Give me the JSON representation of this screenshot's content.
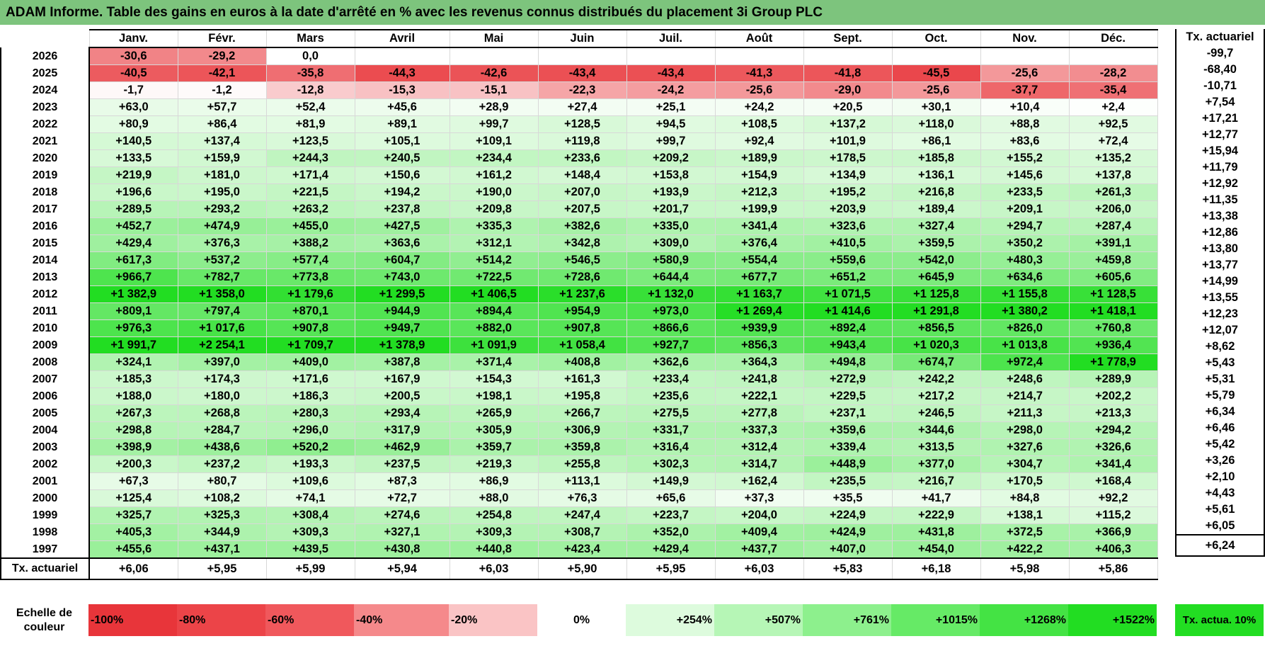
{
  "title": "ADAM Informe. Table des gains en euros à la date d'arrêté en % avec les revenus connus distribués du placement 3i Group PLC",
  "months": [
    "Janv.",
    "Févr.",
    "Mars",
    "Avril",
    "Mai",
    "Juin",
    "Juil.",
    "Août",
    "Sept.",
    "Oct.",
    "Nov.",
    "Déc."
  ],
  "side_header": "Tx. actuariel",
  "rows": [
    {
      "year": "2026",
      "values": [
        "-30,6",
        "-29,2",
        "0,0",
        "",
        "",
        "",
        "",
        "",
        "",
        "",
        "",
        ""
      ],
      "rate": "-99,7"
    },
    {
      "year": "2025",
      "values": [
        "-40,5",
        "-42,1",
        "-35,8",
        "-44,3",
        "-42,6",
        "-43,4",
        "-43,4",
        "-41,3",
        "-41,8",
        "-45,5",
        "-25,6",
        "-28,2"
      ],
      "rate": "-68,40"
    },
    {
      "year": "2024",
      "values": [
        "-1,7",
        "-1,2",
        "-12,8",
        "-15,3",
        "-15,1",
        "-22,3",
        "-24,2",
        "-25,6",
        "-29,0",
        "-25,6",
        "-37,7",
        "-35,4"
      ],
      "rate": "-10,71"
    },
    {
      "year": "2023",
      "values": [
        "+63,0",
        "+57,7",
        "+52,4",
        "+45,6",
        "+28,9",
        "+27,4",
        "+25,1",
        "+24,2",
        "+20,5",
        "+30,1",
        "+10,4",
        "+2,4"
      ],
      "rate": "+7,54"
    },
    {
      "year": "2022",
      "values": [
        "+80,9",
        "+86,4",
        "+81,9",
        "+89,1",
        "+99,7",
        "+128,5",
        "+94,5",
        "+108,5",
        "+137,2",
        "+118,0",
        "+88,8",
        "+92,5"
      ],
      "rate": "+17,21"
    },
    {
      "year": "2021",
      "values": [
        "+140,5",
        "+137,4",
        "+123,5",
        "+105,1",
        "+109,1",
        "+119,8",
        "+99,7",
        "+92,4",
        "+101,9",
        "+86,1",
        "+83,6",
        "+72,4"
      ],
      "rate": "+12,77"
    },
    {
      "year": "2020",
      "values": [
        "+133,5",
        "+159,9",
        "+244,3",
        "+240,5",
        "+234,4",
        "+233,6",
        "+209,2",
        "+189,9",
        "+178,5",
        "+185,8",
        "+155,2",
        "+135,2"
      ],
      "rate": "+15,94"
    },
    {
      "year": "2019",
      "values": [
        "+219,9",
        "+181,0",
        "+171,4",
        "+150,6",
        "+161,2",
        "+148,4",
        "+153,8",
        "+154,9",
        "+134,9",
        "+136,1",
        "+145,6",
        "+137,8"
      ],
      "rate": "+11,79"
    },
    {
      "year": "2018",
      "values": [
        "+196,6",
        "+195,0",
        "+221,5",
        "+194,2",
        "+190,0",
        "+207,0",
        "+193,9",
        "+212,3",
        "+195,2",
        "+216,8",
        "+233,5",
        "+261,3"
      ],
      "rate": "+12,92"
    },
    {
      "year": "2017",
      "values": [
        "+289,5",
        "+293,2",
        "+263,2",
        "+237,8",
        "+209,8",
        "+207,5",
        "+201,7",
        "+199,9",
        "+203,9",
        "+189,4",
        "+209,1",
        "+206,0"
      ],
      "rate": "+11,35"
    },
    {
      "year": "2016",
      "values": [
        "+452,7",
        "+474,9",
        "+455,0",
        "+427,5",
        "+335,3",
        "+382,6",
        "+335,0",
        "+341,4",
        "+323,6",
        "+327,4",
        "+294,7",
        "+287,4"
      ],
      "rate": "+13,38"
    },
    {
      "year": "2015",
      "values": [
        "+429,4",
        "+376,3",
        "+388,2",
        "+363,6",
        "+312,1",
        "+342,8",
        "+309,0",
        "+376,4",
        "+410,5",
        "+359,5",
        "+350,2",
        "+391,1"
      ],
      "rate": "+12,86"
    },
    {
      "year": "2014",
      "values": [
        "+617,3",
        "+537,2",
        "+577,4",
        "+604,7",
        "+514,2",
        "+546,5",
        "+580,9",
        "+554,4",
        "+559,6",
        "+542,0",
        "+480,3",
        "+459,8"
      ],
      "rate": "+13,80"
    },
    {
      "year": "2013",
      "values": [
        "+966,7",
        "+782,7",
        "+773,8",
        "+743,0",
        "+722,5",
        "+728,6",
        "+644,4",
        "+677,7",
        "+651,2",
        "+645,9",
        "+634,6",
        "+605,6"
      ],
      "rate": "+13,77"
    },
    {
      "year": "2012",
      "values": [
        "+1 382,9",
        "+1 358,0",
        "+1 179,6",
        "+1 299,5",
        "+1 406,5",
        "+1 237,6",
        "+1 132,0",
        "+1 163,7",
        "+1 071,5",
        "+1 125,8",
        "+1 155,8",
        "+1 128,5"
      ],
      "rate": "+14,99"
    },
    {
      "year": "2011",
      "values": [
        "+809,1",
        "+797,4",
        "+870,1",
        "+944,9",
        "+894,4",
        "+954,9",
        "+973,0",
        "+1 269,4",
        "+1 414,6",
        "+1 291,8",
        "+1 380,2",
        "+1 418,1"
      ],
      "rate": "+13,55"
    },
    {
      "year": "2010",
      "values": [
        "+976,3",
        "+1 017,6",
        "+907,8",
        "+949,7",
        "+882,0",
        "+907,8",
        "+866,6",
        "+939,9",
        "+892,4",
        "+856,5",
        "+826,0",
        "+760,8"
      ],
      "rate": "+12,23"
    },
    {
      "year": "2009",
      "values": [
        "+1 991,7",
        "+2 254,1",
        "+1 709,7",
        "+1 378,9",
        "+1 091,9",
        "+1 058,4",
        "+927,7",
        "+856,3",
        "+943,4",
        "+1 020,3",
        "+1 013,8",
        "+936,4"
      ],
      "rate": "+12,07"
    },
    {
      "year": "2008",
      "values": [
        "+324,1",
        "+397,0",
        "+409,0",
        "+387,8",
        "+371,4",
        "+408,8",
        "+362,6",
        "+364,3",
        "+494,8",
        "+674,7",
        "+972,4",
        "+1 778,9"
      ],
      "rate": "+8,62"
    },
    {
      "year": "2007",
      "values": [
        "+185,3",
        "+174,3",
        "+171,6",
        "+167,9",
        "+154,3",
        "+161,3",
        "+233,4",
        "+241,8",
        "+272,9",
        "+242,2",
        "+248,6",
        "+289,9"
      ],
      "rate": "+5,43"
    },
    {
      "year": "2006",
      "values": [
        "+188,0",
        "+180,0",
        "+186,3",
        "+200,5",
        "+198,1",
        "+195,8",
        "+235,6",
        "+222,1",
        "+229,5",
        "+217,2",
        "+214,7",
        "+202,2"
      ],
      "rate": "+5,31"
    },
    {
      "year": "2005",
      "values": [
        "+267,3",
        "+268,8",
        "+280,3",
        "+293,4",
        "+265,9",
        "+266,7",
        "+275,5",
        "+277,8",
        "+237,1",
        "+246,5",
        "+211,3",
        "+213,3"
      ],
      "rate": "+5,79"
    },
    {
      "year": "2004",
      "values": [
        "+298,8",
        "+284,7",
        "+296,0",
        "+317,9",
        "+305,9",
        "+306,9",
        "+331,7",
        "+337,3",
        "+359,6",
        "+344,6",
        "+298,0",
        "+294,2"
      ],
      "rate": "+6,34"
    },
    {
      "year": "2003",
      "values": [
        "+398,9",
        "+438,6",
        "+520,2",
        "+462,9",
        "+359,7",
        "+359,8",
        "+316,4",
        "+312,4",
        "+339,4",
        "+313,5",
        "+327,6",
        "+326,6"
      ],
      "rate": "+6,46"
    },
    {
      "year": "2002",
      "values": [
        "+200,3",
        "+237,2",
        "+193,3",
        "+237,5",
        "+219,3",
        "+255,8",
        "+302,3",
        "+314,7",
        "+448,9",
        "+377,0",
        "+304,7",
        "+341,4"
      ],
      "rate": "+5,42"
    },
    {
      "year": "2001",
      "values": [
        "+67,3",
        "+80,7",
        "+109,6",
        "+87,3",
        "+86,9",
        "+113,1",
        "+149,9",
        "+162,4",
        "+235,5",
        "+216,7",
        "+170,5",
        "+168,4"
      ],
      "rate": "+3,26"
    },
    {
      "year": "2000",
      "values": [
        "+125,4",
        "+108,2",
        "+74,1",
        "+72,7",
        "+88,0",
        "+76,3",
        "+65,6",
        "+37,3",
        "+35,5",
        "+41,7",
        "+84,8",
        "+92,2"
      ],
      "rate": "+2,10"
    },
    {
      "year": "1999",
      "values": [
        "+325,7",
        "+325,3",
        "+308,4",
        "+274,6",
        "+254,8",
        "+247,4",
        "+223,7",
        "+204,0",
        "+224,9",
        "+222,9",
        "+138,1",
        "+115,2"
      ],
      "rate": "+4,43"
    },
    {
      "year": "1998",
      "values": [
        "+405,3",
        "+344,9",
        "+309,3",
        "+327,1",
        "+309,3",
        "+308,7",
        "+352,0",
        "+409,4",
        "+424,9",
        "+431,8",
        "+372,5",
        "+366,9"
      ],
      "rate": "+5,61"
    },
    {
      "year": "1997",
      "values": [
        "+455,6",
        "+437,1",
        "+439,5",
        "+430,8",
        "+440,8",
        "+423,4",
        "+429,4",
        "+437,7",
        "+407,0",
        "+454,0",
        "+422,2",
        "+406,3"
      ],
      "rate": "+6,05"
    }
  ],
  "total_row": {
    "label": "Tx. actuariel",
    "values": [
      "+6,06",
      "+5,95",
      "+5,99",
      "+5,94",
      "+6,03",
      "+5,90",
      "+5,95",
      "+6,03",
      "+5,83",
      "+6,18",
      "+5,98",
      "+5,86"
    ],
    "rate": "+6,24"
  },
  "scale": {
    "label": "Echelle de couleur",
    "items": [
      {
        "text": "-100%",
        "color": "#e8353a"
      },
      {
        "text": "-80%",
        "color": "#ec4448"
      },
      {
        "text": "-60%",
        "color": "#f0585c"
      },
      {
        "text": "-40%",
        "color": "#f5898b"
      },
      {
        "text": "-20%",
        "color": "#fac4c5"
      },
      {
        "text": "0%",
        "color": "#ffffff"
      },
      {
        "text": "+254%",
        "color": "#ddfbdd"
      },
      {
        "text": "+507%",
        "color": "#b6f6b6"
      },
      {
        "text": "+761%",
        "color": "#8df08d"
      },
      {
        "text": "+1015%",
        "color": "#66ea66"
      },
      {
        "text": "+1268%",
        "color": "#44e344"
      },
      {
        "text": "+1522%",
        "color": "#22dd22"
      }
    ],
    "rate_legend": "Tx. actua. 10%"
  },
  "colors": {
    "title_bar": "#7dc47d",
    "negative": "#e8353a",
    "positive": "#22dd22"
  }
}
